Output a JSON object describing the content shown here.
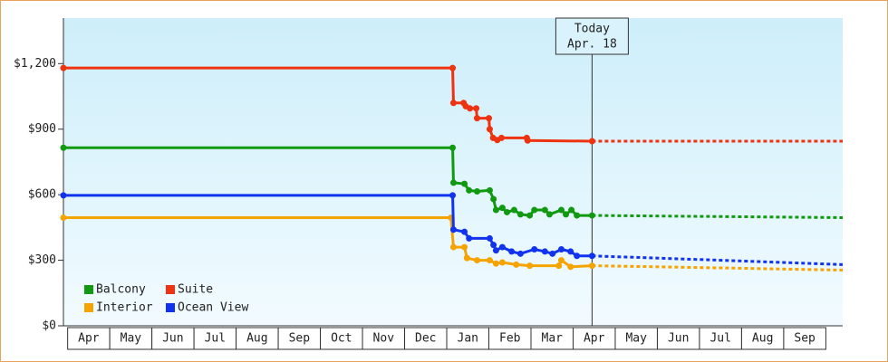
{
  "chart_data": {
    "type": "line",
    "categories": [
      "Apr",
      "May",
      "Jun",
      "Jul",
      "Aug",
      "Sep",
      "Oct",
      "Nov",
      "Dec",
      "Jan",
      "Feb",
      "Mar",
      "Apr",
      "May",
      "Jun",
      "Jul",
      "Aug",
      "Sep"
    ],
    "xlim": [
      -0.1,
      18.4
    ],
    "ylim": [
      0,
      1400
    ],
    "yticks": [
      {
        "value": 0,
        "label": "$0"
      },
      {
        "value": 300,
        "label": "$300"
      },
      {
        "value": 600,
        "label": "$600"
      },
      {
        "value": 900,
        "label": "$900"
      },
      {
        "value": 1200,
        "label": "$1,200"
      }
    ],
    "legend": "lower left",
    "today": {
      "label": [
        "Today",
        "Apr. 18"
      ],
      "x": 12.45
    },
    "series": [
      {
        "name": "Balcony",
        "color": "#119911",
        "x": [
          -0.1,
          9.14,
          9.16,
          9.42,
          9.53,
          9.72,
          10.02,
          10.11,
          10.17,
          10.32,
          10.43,
          10.6,
          10.75,
          10.97,
          11.08,
          11.33,
          11.44,
          11.72,
          11.83,
          11.96,
          12.09,
          12.45
        ],
        "values": [
          815,
          815,
          655,
          650,
          620,
          615,
          620,
          580,
          530,
          540,
          520,
          530,
          510,
          505,
          530,
          530,
          510,
          530,
          510,
          530,
          505,
          505
        ],
        "forecast_x": [
          12.45,
          15.5,
          18.4
        ],
        "forecast_values": [
          505,
          500,
          495
        ]
      },
      {
        "name": "Suite",
        "color": "#ee3311",
        "x": [
          -0.1,
          9.14,
          9.16,
          9.4,
          9.45,
          9.55,
          9.7,
          9.72,
          10.0,
          10.02,
          10.1,
          10.2,
          10.3,
          10.9,
          10.92,
          12.45
        ],
        "values": [
          1180,
          1180,
          1020,
          1020,
          1005,
          995,
          995,
          950,
          950,
          900,
          860,
          850,
          860,
          860,
          848,
          845
        ],
        "forecast_x": [
          12.45,
          18.4
        ],
        "forecast_values": [
          845,
          845
        ]
      },
      {
        "name": "Interior",
        "color": "#f5a300",
        "x": [
          -0.1,
          9.1,
          9.16,
          9.42,
          9.48,
          9.72,
          10.02,
          10.17,
          10.32,
          10.65,
          10.97,
          11.66,
          11.72,
          11.94,
          12.45
        ],
        "values": [
          495,
          495,
          360,
          360,
          310,
          300,
          300,
          285,
          290,
          280,
          275,
          275,
          300,
          270,
          275
        ],
        "forecast_x": [
          12.45,
          15.5,
          18.4
        ],
        "forecast_values": [
          275,
          265,
          255
        ]
      },
      {
        "name": "Ocean View",
        "color": "#1133ee",
        "x": [
          -0.1,
          9.14,
          9.16,
          9.42,
          9.53,
          10.02,
          10.11,
          10.17,
          10.32,
          10.54,
          10.75,
          11.08,
          11.33,
          11.51,
          11.72,
          11.94,
          12.09,
          12.45
        ],
        "values": [
          597,
          597,
          440,
          430,
          400,
          400,
          370,
          345,
          360,
          340,
          330,
          350,
          340,
          330,
          350,
          340,
          320,
          320
        ],
        "forecast_x": [
          12.45,
          15.5,
          18.4
        ],
        "forecast_values": [
          320,
          300,
          280
        ]
      }
    ]
  }
}
